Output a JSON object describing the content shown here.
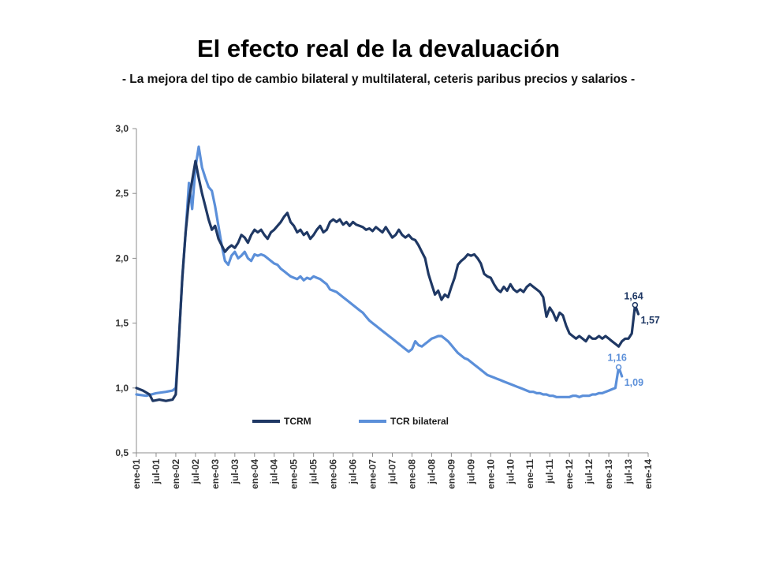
{
  "slide": {
    "title": "El efecto real de la devaluación",
    "subtitle": "- La mejora del tipo de cambio bilateral y multilateral, ceteris paribus precios y salarios -"
  },
  "chart_data": {
    "type": "line",
    "title": "",
    "xlabel": "",
    "ylabel": "",
    "ylim": [
      0.5,
      3.0
    ],
    "y_ticks": [
      "3,0",
      "2,5",
      "2,0",
      "1,5",
      "1,0",
      "0,5"
    ],
    "x_ticks": [
      "ene-01",
      "jul-01",
      "ene-02",
      "jul-02",
      "ene-03",
      "jul-03",
      "ene-04",
      "jul-04",
      "ene-05",
      "jul-05",
      "ene-06",
      "jul-06",
      "ene-07",
      "jul-07",
      "ene-08",
      "jul-08",
      "ene-09",
      "jul-09",
      "ene-10",
      "jul-10",
      "ene-11",
      "jul-11",
      "ene-12",
      "jul-12",
      "ene-13",
      "jul-13",
      "ene-14"
    ],
    "grid": false,
    "legend_position": "bottom-center",
    "series": [
      {
        "name": "TCRM",
        "color": "#1f3864",
        "points": [
          [
            0,
            1.0
          ],
          [
            2,
            0.98
          ],
          [
            4,
            0.95
          ],
          [
            5,
            0.9
          ],
          [
            7,
            0.91
          ],
          [
            9,
            0.9
          ],
          [
            11,
            0.91
          ],
          [
            12,
            0.95
          ],
          [
            13,
            1.4
          ],
          [
            14,
            1.85
          ],
          [
            15,
            2.2
          ],
          [
            16,
            2.45
          ],
          [
            17,
            2.6
          ],
          [
            18,
            2.75
          ],
          [
            19,
            2.62
          ],
          [
            20,
            2.5
          ],
          [
            21,
            2.4
          ],
          [
            22,
            2.3
          ],
          [
            23,
            2.22
          ],
          [
            24,
            2.25
          ],
          [
            25,
            2.15
          ],
          [
            26,
            2.1
          ],
          [
            27,
            2.05
          ],
          [
            28,
            2.08
          ],
          [
            29,
            2.1
          ],
          [
            30,
            2.08
          ],
          [
            31,
            2.12
          ],
          [
            32,
            2.18
          ],
          [
            33,
            2.16
          ],
          [
            34,
            2.12
          ],
          [
            35,
            2.18
          ],
          [
            36,
            2.22
          ],
          [
            37,
            2.2
          ],
          [
            38,
            2.22
          ],
          [
            39,
            2.18
          ],
          [
            40,
            2.15
          ],
          [
            41,
            2.2
          ],
          [
            42,
            2.22
          ],
          [
            43,
            2.25
          ],
          [
            44,
            2.28
          ],
          [
            45,
            2.32
          ],
          [
            46,
            2.35
          ],
          [
            47,
            2.28
          ],
          [
            48,
            2.25
          ],
          [
            49,
            2.2
          ],
          [
            50,
            2.22
          ],
          [
            51,
            2.18
          ],
          [
            52,
            2.2
          ],
          [
            53,
            2.15
          ],
          [
            54,
            2.18
          ],
          [
            55,
            2.22
          ],
          [
            56,
            2.25
          ],
          [
            57,
            2.2
          ],
          [
            58,
            2.22
          ],
          [
            59,
            2.28
          ],
          [
            60,
            2.3
          ],
          [
            61,
            2.28
          ],
          [
            62,
            2.3
          ],
          [
            63,
            2.26
          ],
          [
            64,
            2.28
          ],
          [
            65,
            2.25
          ],
          [
            66,
            2.28
          ],
          [
            67,
            2.26
          ],
          [
            68,
            2.25
          ],
          [
            69,
            2.24
          ],
          [
            70,
            2.22
          ],
          [
            71,
            2.23
          ],
          [
            72,
            2.21
          ],
          [
            73,
            2.24
          ],
          [
            74,
            2.22
          ],
          [
            75,
            2.2
          ],
          [
            76,
            2.24
          ],
          [
            77,
            2.2
          ],
          [
            78,
            2.16
          ],
          [
            79,
            2.18
          ],
          [
            80,
            2.22
          ],
          [
            81,
            2.18
          ],
          [
            82,
            2.16
          ],
          [
            83,
            2.18
          ],
          [
            84,
            2.15
          ],
          [
            85,
            2.14
          ],
          [
            86,
            2.1
          ],
          [
            87,
            2.05
          ],
          [
            88,
            2.0
          ],
          [
            89,
            1.88
          ],
          [
            90,
            1.8
          ],
          [
            91,
            1.72
          ],
          [
            92,
            1.75
          ],
          [
            93,
            1.68
          ],
          [
            94,
            1.72
          ],
          [
            95,
            1.7
          ],
          [
            96,
            1.78
          ],
          [
            97,
            1.85
          ],
          [
            98,
            1.95
          ],
          [
            99,
            1.98
          ],
          [
            100,
            2.0
          ],
          [
            101,
            2.03
          ],
          [
            102,
            2.02
          ],
          [
            103,
            2.03
          ],
          [
            104,
            2.0
          ],
          [
            105,
            1.96
          ],
          [
            106,
            1.88
          ],
          [
            107,
            1.86
          ],
          [
            108,
            1.85
          ],
          [
            109,
            1.8
          ],
          [
            110,
            1.76
          ],
          [
            111,
            1.74
          ],
          [
            112,
            1.78
          ],
          [
            113,
            1.75
          ],
          [
            114,
            1.8
          ],
          [
            115,
            1.76
          ],
          [
            116,
            1.74
          ],
          [
            117,
            1.76
          ],
          [
            118,
            1.74
          ],
          [
            119,
            1.78
          ],
          [
            120,
            1.8
          ],
          [
            121,
            1.78
          ],
          [
            122,
            1.76
          ],
          [
            123,
            1.74
          ],
          [
            124,
            1.7
          ],
          [
            125,
            1.55
          ],
          [
            126,
            1.62
          ],
          [
            127,
            1.58
          ],
          [
            128,
            1.52
          ],
          [
            129,
            1.58
          ],
          [
            130,
            1.56
          ],
          [
            131,
            1.48
          ],
          [
            132,
            1.42
          ],
          [
            133,
            1.4
          ],
          [
            134,
            1.38
          ],
          [
            135,
            1.4
          ],
          [
            136,
            1.38
          ],
          [
            137,
            1.36
          ],
          [
            138,
            1.4
          ],
          [
            139,
            1.38
          ],
          [
            140,
            1.38
          ],
          [
            141,
            1.4
          ],
          [
            142,
            1.38
          ],
          [
            143,
            1.4
          ],
          [
            144,
            1.38
          ],
          [
            145,
            1.36
          ],
          [
            146,
            1.34
          ],
          [
            147,
            1.32
          ],
          [
            148,
            1.36
          ],
          [
            149,
            1.38
          ],
          [
            150,
            1.38
          ],
          [
            151,
            1.42
          ],
          [
            152,
            1.64
          ],
          [
            153,
            1.57
          ]
        ]
      },
      {
        "name": "TCR bilateral",
        "color": "#5b8fd9",
        "points": [
          [
            0,
            0.95
          ],
          [
            3,
            0.94
          ],
          [
            6,
            0.96
          ],
          [
            9,
            0.97
          ],
          [
            11,
            0.98
          ],
          [
            12,
            1.0
          ],
          [
            13,
            1.4
          ],
          [
            14,
            1.85
          ],
          [
            15,
            2.2
          ],
          [
            16,
            2.58
          ],
          [
            17,
            2.38
          ],
          [
            18,
            2.7
          ],
          [
            19,
            2.86
          ],
          [
            20,
            2.7
          ],
          [
            21,
            2.62
          ],
          [
            22,
            2.55
          ],
          [
            23,
            2.52
          ],
          [
            24,
            2.4
          ],
          [
            25,
            2.25
          ],
          [
            26,
            2.1
          ],
          [
            27,
            1.98
          ],
          [
            28,
            1.95
          ],
          [
            29,
            2.02
          ],
          [
            30,
            2.05
          ],
          [
            31,
            2.0
          ],
          [
            32,
            2.02
          ],
          [
            33,
            2.05
          ],
          [
            34,
            2.0
          ],
          [
            35,
            1.98
          ],
          [
            36,
            2.03
          ],
          [
            37,
            2.02
          ],
          [
            38,
            2.03
          ],
          [
            39,
            2.02
          ],
          [
            40,
            2.0
          ],
          [
            41,
            1.98
          ],
          [
            42,
            1.96
          ],
          [
            43,
            1.95
          ],
          [
            44,
            1.92
          ],
          [
            45,
            1.9
          ],
          [
            46,
            1.88
          ],
          [
            47,
            1.86
          ],
          [
            48,
            1.85
          ],
          [
            49,
            1.84
          ],
          [
            50,
            1.86
          ],
          [
            51,
            1.83
          ],
          [
            52,
            1.85
          ],
          [
            53,
            1.84
          ],
          [
            54,
            1.86
          ],
          [
            55,
            1.85
          ],
          [
            56,
            1.84
          ],
          [
            57,
            1.82
          ],
          [
            58,
            1.8
          ],
          [
            59,
            1.76
          ],
          [
            60,
            1.75
          ],
          [
            61,
            1.74
          ],
          [
            62,
            1.72
          ],
          [
            63,
            1.7
          ],
          [
            64,
            1.68
          ],
          [
            65,
            1.66
          ],
          [
            66,
            1.64
          ],
          [
            67,
            1.62
          ],
          [
            68,
            1.6
          ],
          [
            69,
            1.58
          ],
          [
            70,
            1.55
          ],
          [
            71,
            1.52
          ],
          [
            72,
            1.5
          ],
          [
            73,
            1.48
          ],
          [
            74,
            1.46
          ],
          [
            75,
            1.44
          ],
          [
            76,
            1.42
          ],
          [
            77,
            1.4
          ],
          [
            78,
            1.38
          ],
          [
            79,
            1.36
          ],
          [
            80,
            1.34
          ],
          [
            81,
            1.32
          ],
          [
            82,
            1.3
          ],
          [
            83,
            1.28
          ],
          [
            84,
            1.3
          ],
          [
            85,
            1.36
          ],
          [
            86,
            1.33
          ],
          [
            87,
            1.32
          ],
          [
            88,
            1.34
          ],
          [
            89,
            1.36
          ],
          [
            90,
            1.38
          ],
          [
            91,
            1.39
          ],
          [
            92,
            1.4
          ],
          [
            93,
            1.4
          ],
          [
            94,
            1.38
          ],
          [
            95,
            1.36
          ],
          [
            96,
            1.33
          ],
          [
            97,
            1.3
          ],
          [
            98,
            1.27
          ],
          [
            99,
            1.25
          ],
          [
            100,
            1.23
          ],
          [
            101,
            1.22
          ],
          [
            102,
            1.2
          ],
          [
            103,
            1.18
          ],
          [
            104,
            1.16
          ],
          [
            105,
            1.14
          ],
          [
            106,
            1.12
          ],
          [
            107,
            1.1
          ],
          [
            108,
            1.09
          ],
          [
            109,
            1.08
          ],
          [
            110,
            1.07
          ],
          [
            111,
            1.06
          ],
          [
            112,
            1.05
          ],
          [
            113,
            1.04
          ],
          [
            114,
            1.03
          ],
          [
            115,
            1.02
          ],
          [
            116,
            1.01
          ],
          [
            117,
            1.0
          ],
          [
            118,
            0.99
          ],
          [
            119,
            0.98
          ],
          [
            120,
            0.97
          ],
          [
            121,
            0.97
          ],
          [
            122,
            0.96
          ],
          [
            123,
            0.96
          ],
          [
            124,
            0.95
          ],
          [
            125,
            0.95
          ],
          [
            126,
            0.94
          ],
          [
            127,
            0.94
          ],
          [
            128,
            0.93
          ],
          [
            129,
            0.93
          ],
          [
            130,
            0.93
          ],
          [
            131,
            0.93
          ],
          [
            132,
            0.93
          ],
          [
            133,
            0.94
          ],
          [
            134,
            0.94
          ],
          [
            135,
            0.93
          ],
          [
            136,
            0.94
          ],
          [
            137,
            0.94
          ],
          [
            138,
            0.94
          ],
          [
            139,
            0.95
          ],
          [
            140,
            0.95
          ],
          [
            141,
            0.96
          ],
          [
            142,
            0.96
          ],
          [
            143,
            0.97
          ],
          [
            144,
            0.98
          ],
          [
            145,
            0.99
          ],
          [
            146,
            1.0
          ],
          [
            147,
            1.16
          ],
          [
            148,
            1.09
          ]
        ]
      }
    ],
    "annotations": [
      {
        "text": "1,64",
        "series": 0,
        "x": 152,
        "y": 1.64,
        "color": "#1f3864"
      },
      {
        "text": "1,57",
        "series": 0,
        "x": 153,
        "y": 1.57,
        "color": "#1f3864"
      },
      {
        "text": "1,16",
        "series": 1,
        "x": 147,
        "y": 1.16,
        "color": "#5b8fd9"
      },
      {
        "text": "1,09",
        "series": 1,
        "x": 148,
        "y": 1.09,
        "color": "#5b8fd9"
      }
    ]
  }
}
